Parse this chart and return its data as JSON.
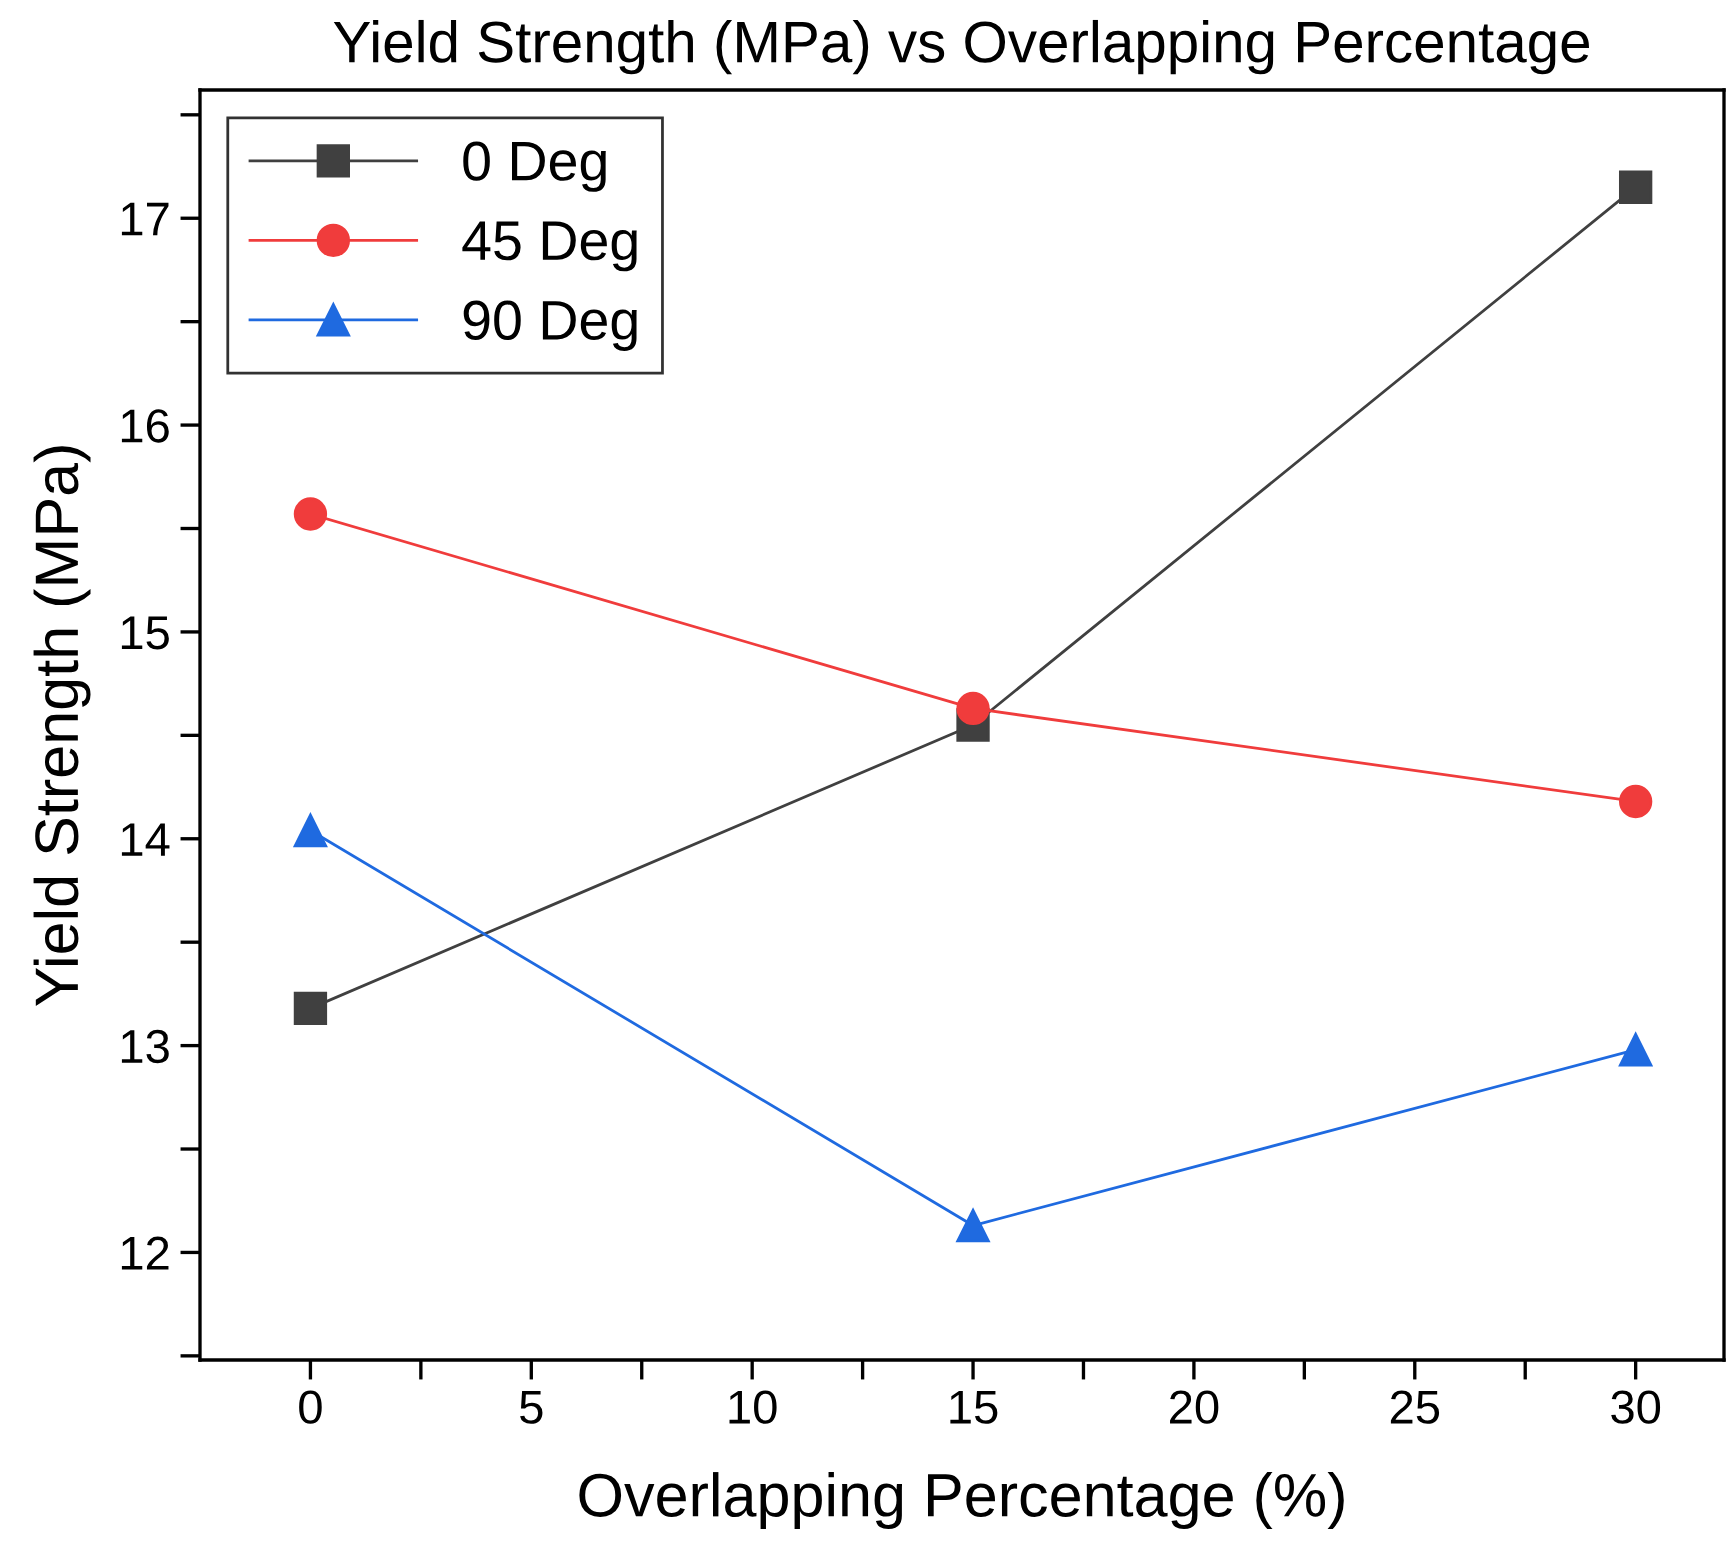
{
  "chart_data": {
    "type": "line",
    "title": "Yield Strength (MPa) vs Overlapping Percentage",
    "xlabel": "Overlapping Percentage (%)",
    "ylabel": "Yield Strength (MPa)",
    "x": [
      0,
      15,
      30
    ],
    "series": [
      {
        "name": "0 Deg",
        "color": "#404040",
        "marker": "square",
        "values": [
          13.18,
          14.55,
          17.15
        ]
      },
      {
        "name": "45 Deg",
        "color": "#f03c3c",
        "marker": "circle",
        "values": [
          15.57,
          14.63,
          14.18
        ]
      },
      {
        "name": "90 Deg",
        "color": "#1f6ae0",
        "marker": "triangle",
        "values": [
          14.04,
          12.13,
          12.98
        ]
      }
    ],
    "xlim": [
      -2.5,
      32
    ],
    "xticks": [
      0,
      {
        "value": 2.5,
        "label": null
      },
      5,
      {
        "value": 7.5,
        "label": null
      },
      10,
      {
        "value": 12.5,
        "label": null
      },
      15,
      {
        "value": 17.5,
        "label": null
      },
      20,
      {
        "value": 22.5,
        "label": null
      },
      25,
      {
        "value": 27.5,
        "label": null
      },
      30
    ],
    "ylim": [
      11.48,
      17.62
    ],
    "yticks": [
      {
        "value": 11.5,
        "label": null
      },
      12,
      {
        "value": 12.5,
        "label": null
      },
      13,
      {
        "value": 13.5,
        "label": null
      },
      14,
      {
        "value": 14.5,
        "label": null
      },
      15,
      {
        "value": 15.5,
        "label": null
      },
      16,
      {
        "value": 16.5,
        "label": null
      },
      17,
      {
        "value": 17.5,
        "label": null
      }
    ],
    "grid": false,
    "legend": "top left",
    "line_style": "solid"
  }
}
